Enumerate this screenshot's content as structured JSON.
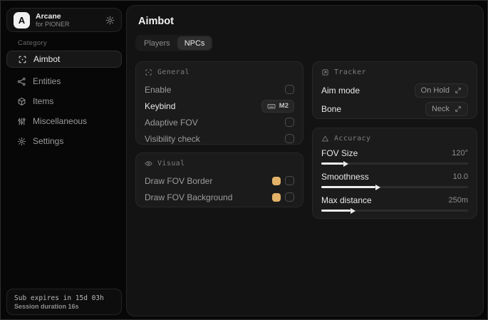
{
  "app": {
    "logo_letter": "A",
    "name": "Arcane",
    "subtitle": "for PIONER"
  },
  "sidebar": {
    "category_label": "Category",
    "items": [
      {
        "label": "Aimbot",
        "icon": "crosshair-icon",
        "selected": true
      },
      {
        "label": "Entities",
        "icon": "entities-icon",
        "selected": false
      },
      {
        "label": "Items",
        "icon": "package-icon",
        "selected": false
      },
      {
        "label": "Miscellaneous",
        "icon": "sliders-icon",
        "selected": false
      },
      {
        "label": "Settings",
        "icon": "gear-icon",
        "selected": false
      }
    ],
    "status": {
      "sub_expires": "Sub expires in 15d 03h",
      "session_duration": "Session duration 16s"
    }
  },
  "main": {
    "title": "Aimbot",
    "tabs": [
      {
        "label": "Players"
      },
      {
        "label": "NPCs"
      }
    ],
    "active_tab": "NPCs",
    "general": {
      "title": "General",
      "rows": [
        {
          "label": "Enable",
          "control": "checkbox",
          "checked": false
        },
        {
          "label": "Keybind",
          "control": "keybind",
          "value": "M2"
        },
        {
          "label": "Adaptive FOV",
          "control": "checkbox",
          "checked": false
        },
        {
          "label": "Visibility check",
          "control": "checkbox",
          "checked": false
        }
      ]
    },
    "visual": {
      "title": "Visual",
      "rows": [
        {
          "label": "Draw FOV Border",
          "color": "#e2b269",
          "checked": false
        },
        {
          "label": "Draw FOV Background",
          "color": "#e2b269",
          "checked": false
        }
      ]
    },
    "tracker": {
      "title": "Tracker",
      "rows": [
        {
          "label": "Aim mode",
          "value": "On Hold"
        },
        {
          "label": "Bone",
          "value": "Neck"
        }
      ]
    },
    "accuracy": {
      "title": "Accuracy",
      "sliders": [
        {
          "label": "FOV Size",
          "value": "120°",
          "percent": 15
        },
        {
          "label": "Smoothness",
          "value": "10.0",
          "percent": 37
        },
        {
          "label": "Max distance",
          "value": "250m",
          "percent": 20
        }
      ]
    }
  },
  "colors": {
    "accent_swatch": "#e2b269",
    "slider_fill": "#ededed"
  }
}
